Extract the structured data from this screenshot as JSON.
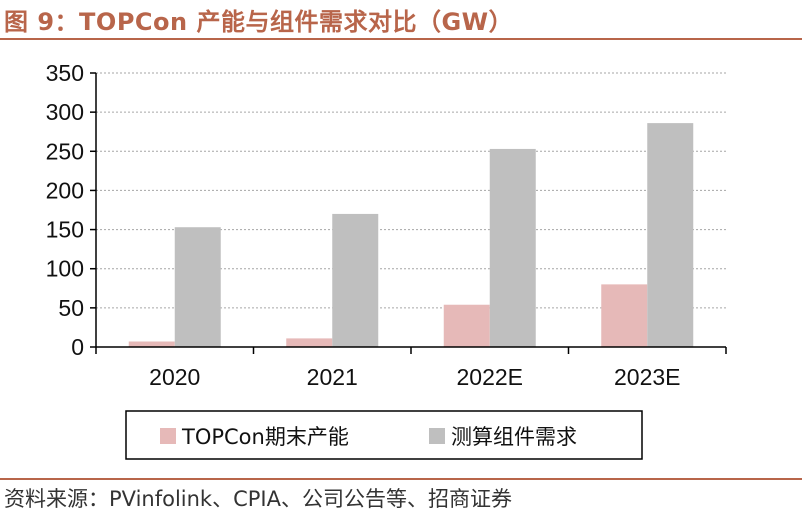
{
  "title": "图 9：TOPCon 产能与组件需求对比（GW）",
  "source": "资料来源：PVinfolink、CPIA、公司公告等、招商证券",
  "colors": {
    "accent": "#b8654a",
    "series1": "#e6b9b8",
    "series2": "#bfbfbf",
    "grid": "#a6a6a6",
    "axis": "#000000"
  },
  "chart_data": {
    "type": "bar",
    "categories": [
      "2020",
      "2021",
      "2022E",
      "2023E"
    ],
    "series": [
      {
        "name": "TOPCon期末产能",
        "values": [
          7,
          11,
          54,
          80
        ]
      },
      {
        "name": "测算组件需求",
        "values": [
          153,
          170,
          253,
          286
        ]
      }
    ],
    "title": "",
    "xlabel": "",
    "ylabel": "",
    "ylim": [
      0,
      350
    ],
    "yticks": [
      0,
      50,
      100,
      150,
      200,
      250,
      300,
      350
    ],
    "grid": true,
    "legend_position": "bottom"
  }
}
